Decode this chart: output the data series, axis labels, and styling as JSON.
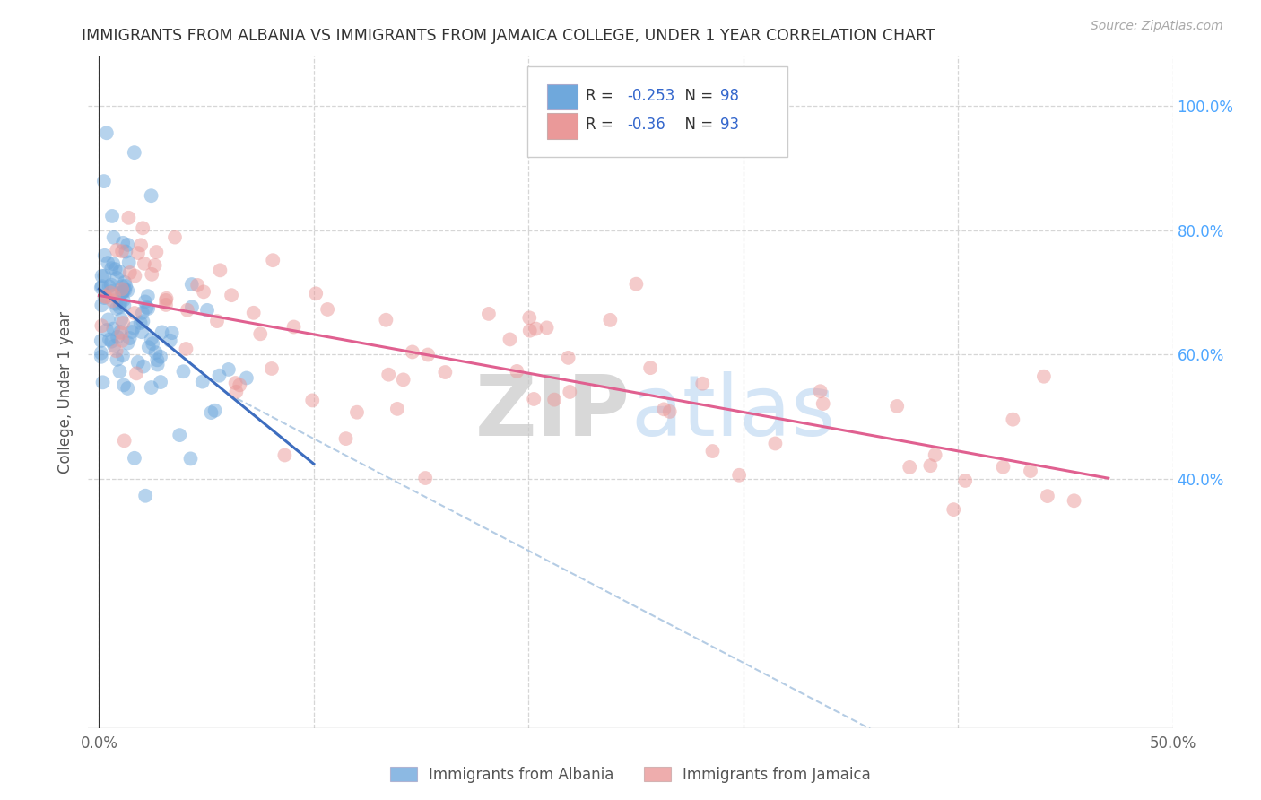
{
  "title": "IMMIGRANTS FROM ALBANIA VS IMMIGRANTS FROM JAMAICA COLLEGE, UNDER 1 YEAR CORRELATION CHART",
  "source": "Source: ZipAtlas.com",
  "ylabel_left": "College, Under 1 year",
  "x_ticks": [
    0.0,
    0.1,
    0.2,
    0.3,
    0.4,
    0.5
  ],
  "x_tick_labels_show": [
    "0.0%",
    "",
    "",
    "",
    "",
    "50.0%"
  ],
  "y_ticks_right": [
    0.4,
    0.6,
    0.8,
    1.0
  ],
  "y_tick_labels_right": [
    "40.0%",
    "60.0%",
    "80.0%",
    "100.0%"
  ],
  "xlim": [
    -0.005,
    0.5
  ],
  "ylim": [
    0.0,
    1.08
  ],
  "albania_color": "#6fa8dc",
  "jamaica_color": "#ea9999",
  "albania_trend_color": "#3d6dbf",
  "jamaica_trend_color": "#e06090",
  "dashed_line_color": "#a8c4e0",
  "albania_R": -0.253,
  "albania_N": 98,
  "jamaica_R": -0.36,
  "jamaica_N": 93,
  "legend_label_albania": "Immigrants from Albania",
  "legend_label_jamaica": "Immigrants from Jamaica",
  "watermark_zip": "ZIP",
  "watermark_atlas": "atlas",
  "background_color": "#ffffff",
  "grid_color": "#cccccc",
  "title_color": "#333333",
  "right_axis_color": "#4da6ff",
  "legend_R_color": "#3366cc",
  "legend_N_color": "#3366cc",
  "seed": 7
}
